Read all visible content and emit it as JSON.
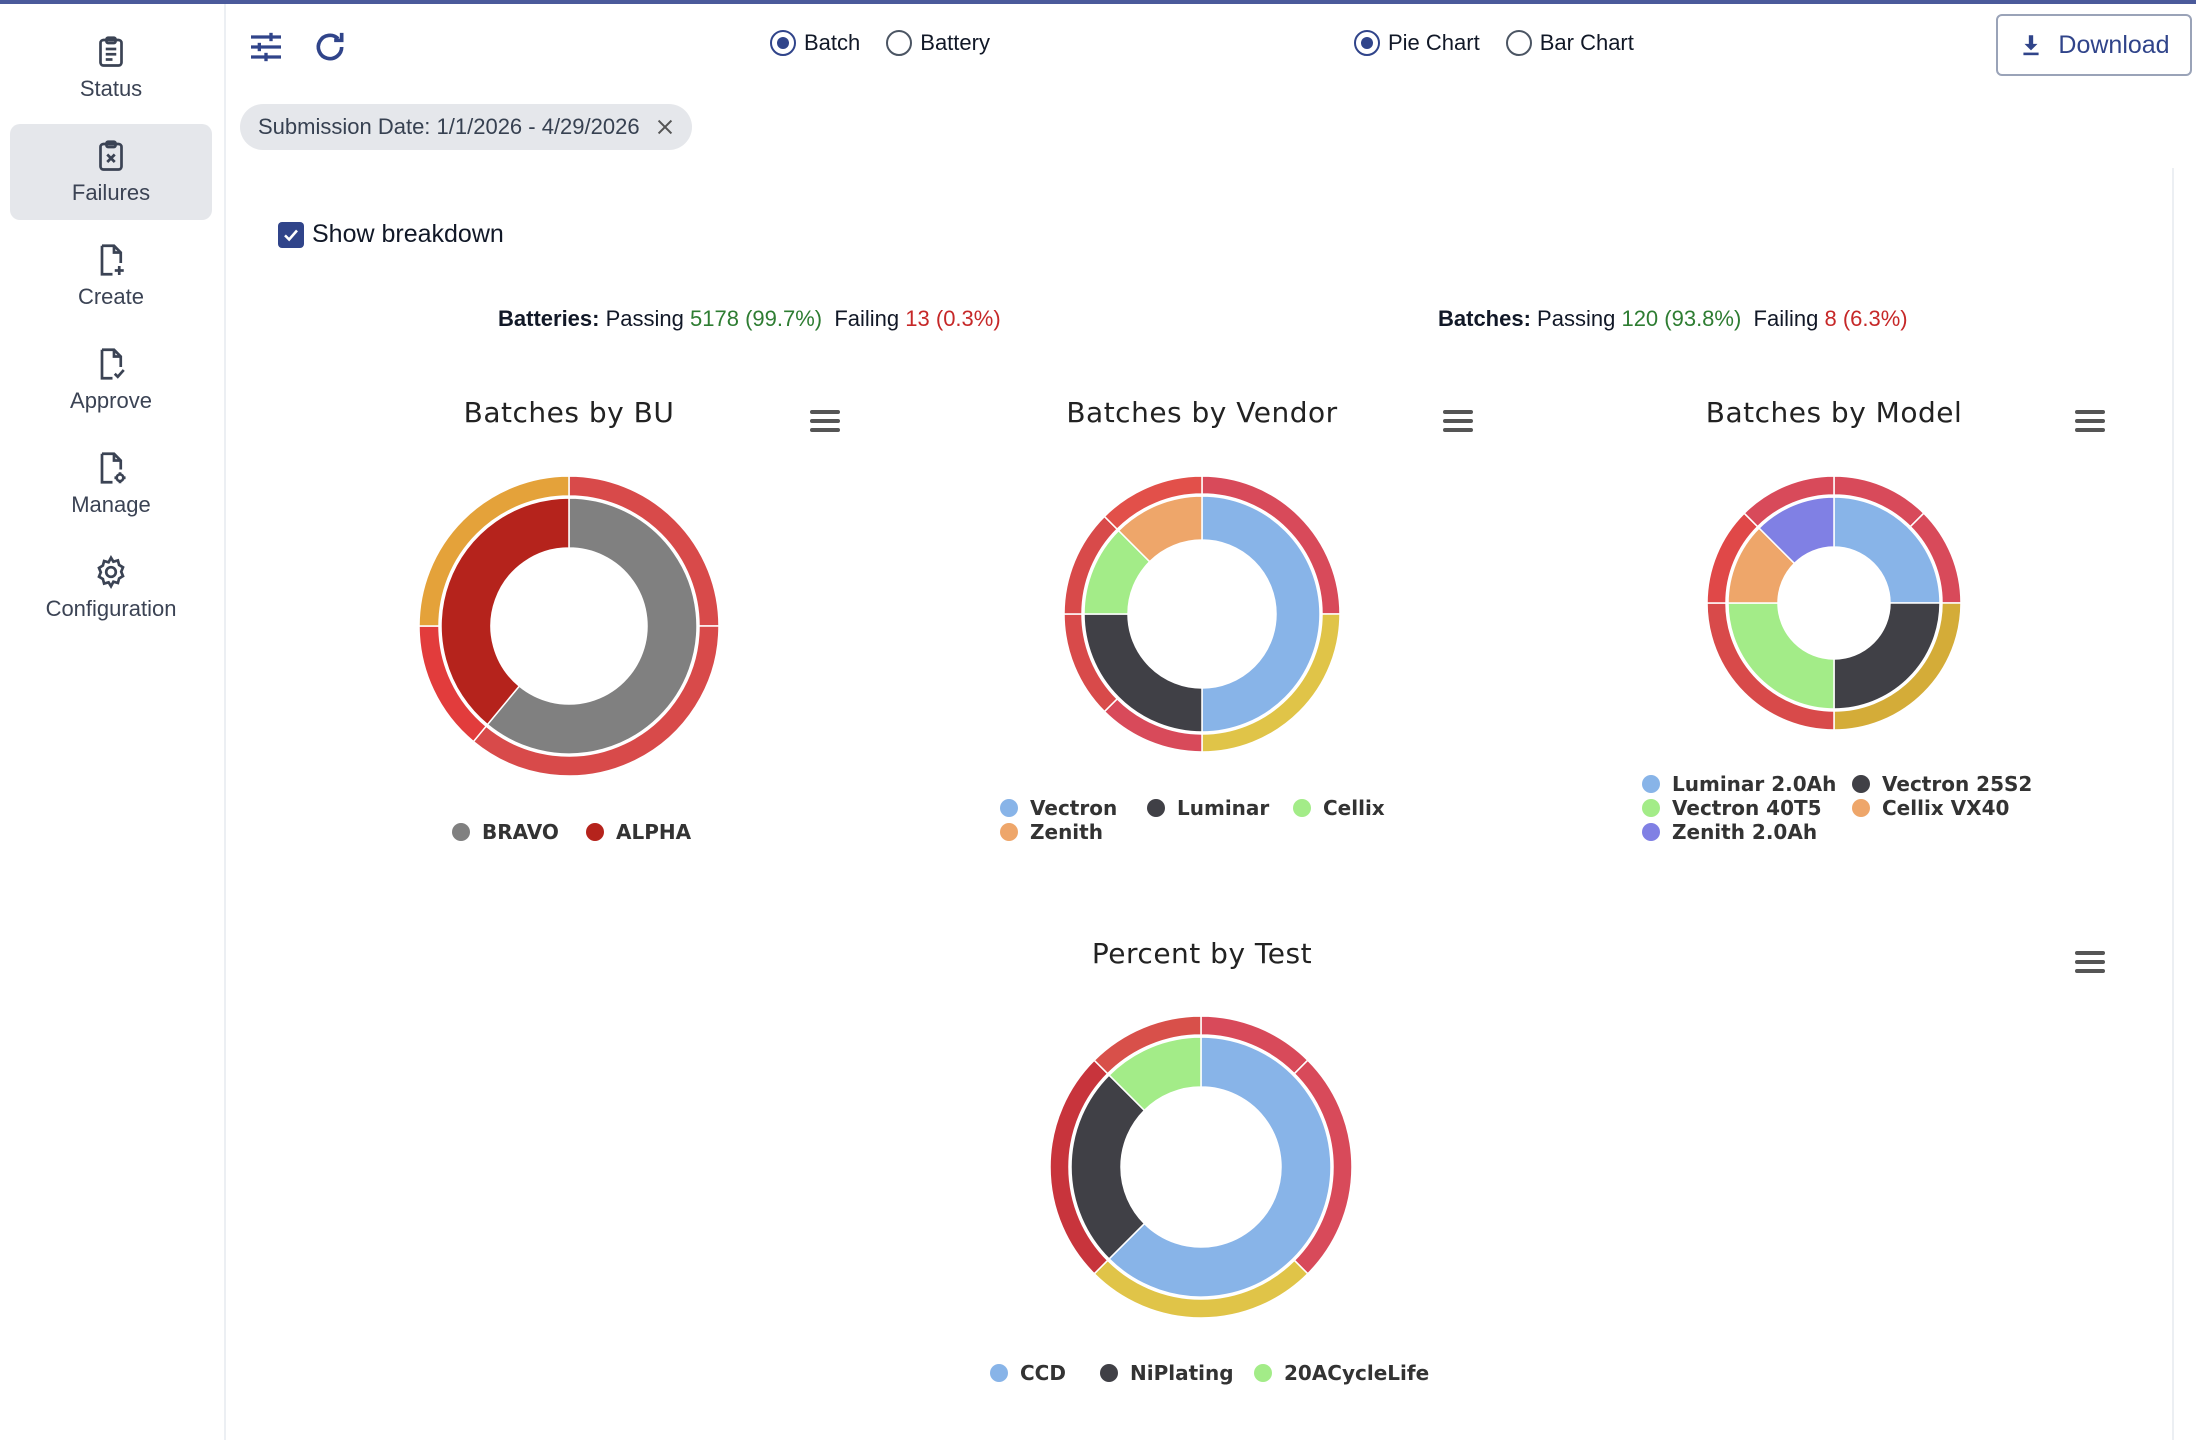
{
  "sidebar": {
    "items": [
      {
        "label": "Status",
        "icon": "clipboard-icon",
        "active": false
      },
      {
        "label": "Failures",
        "icon": "clipboard-x-icon",
        "active": true
      },
      {
        "label": "Create",
        "icon": "file-plus-icon",
        "active": false
      },
      {
        "label": "Approve",
        "icon": "file-check-icon",
        "active": false
      },
      {
        "label": "Manage",
        "icon": "file-gear-icon",
        "active": false
      },
      {
        "label": "Configuration",
        "icon": "gear-icon",
        "active": false
      }
    ]
  },
  "toolbar": {
    "filter_icon": "sliders-icon",
    "refresh_icon": "refresh-icon",
    "view_mode": {
      "options": [
        "Batch",
        "Battery"
      ],
      "selected": "Batch"
    },
    "chart_mode": {
      "options": [
        "Pie Chart",
        "Bar Chart"
      ],
      "selected": "Pie Chart"
    },
    "download_label": "Download"
  },
  "filter_chip": {
    "label": "Submission Date: 1/1/2026 - 4/29/2026"
  },
  "breakdown": {
    "label": "Show breakdown",
    "checked": true
  },
  "summary": {
    "batteries": {
      "label": "Batteries:",
      "passing_label": "Passing",
      "passing": "5178 (99.7%)",
      "failing_label": "Failing",
      "failing": "13 (0.3%)"
    },
    "batches": {
      "label": "Batches:",
      "passing_label": "Passing",
      "passing": "120 (93.8%)",
      "failing_label": "Failing",
      "failing": "8 (6.3%)"
    }
  },
  "colors": {
    "accent": "#30448a",
    "pass": "#2e7d32",
    "fail": "#c62828"
  },
  "chart_data": [
    {
      "type": "pie",
      "title": "Batches by BU",
      "legend": [
        {
          "name": "BRAVO",
          "color": "#808080"
        },
        {
          "name": "ALPHA",
          "color": "#b5231c"
        }
      ],
      "inner": [
        {
          "name": "BRAVO",
          "value": 0.61,
          "color": "#808080"
        },
        {
          "name": "ALPHA",
          "value": 0.39,
          "color": "#b5231c"
        }
      ],
      "outer": [
        {
          "value": 0.25,
          "color": "#d84a4a"
        },
        {
          "value": 0.36,
          "color": "#d84a4a"
        },
        {
          "value": 0.14,
          "color": "#e23c3c"
        },
        {
          "value": 0.25,
          "color": "#e4a23a"
        }
      ]
    },
    {
      "type": "pie",
      "title": "Batches by Vendor",
      "legend": [
        {
          "name": "Vectron",
          "color": "#88b4e8"
        },
        {
          "name": "Luminar",
          "color": "#404046"
        },
        {
          "name": "Cellix",
          "color": "#a3ec88"
        },
        {
          "name": "Zenith",
          "color": "#eea66a"
        }
      ],
      "inner": [
        {
          "name": "Vectron",
          "value": 0.5,
          "color": "#88b4e8"
        },
        {
          "name": "Luminar",
          "value": 0.25,
          "color": "#404046"
        },
        {
          "name": "Cellix",
          "value": 0.125,
          "color": "#a3ec88"
        },
        {
          "name": "Zenith",
          "value": 0.125,
          "color": "#eea66a"
        }
      ],
      "outer": [
        {
          "value": 0.25,
          "color": "#d84a5a"
        },
        {
          "value": 0.25,
          "color": "#e0c448"
        },
        {
          "value": 0.125,
          "color": "#d84a5a"
        },
        {
          "value": 0.125,
          "color": "#d84a4a"
        },
        {
          "value": 0.125,
          "color": "#d84a4a"
        },
        {
          "value": 0.125,
          "color": "#e2504a"
        }
      ]
    },
    {
      "type": "pie",
      "title": "Batches by Model",
      "legend": [
        {
          "name": "Luminar 2.0Ah",
          "color": "#88b4e8"
        },
        {
          "name": "Vectron 25S2",
          "color": "#404046"
        },
        {
          "name": "Vectron 40T5",
          "color": "#a3ec88"
        },
        {
          "name": "Cellix VX40",
          "color": "#eea66a"
        },
        {
          "name": "Zenith 2.0Ah",
          "color": "#8080e4"
        }
      ],
      "inner": [
        {
          "name": "Luminar 2.0Ah",
          "value": 0.25,
          "color": "#88b4e8"
        },
        {
          "name": "Vectron 25S2",
          "value": 0.25,
          "color": "#404046"
        },
        {
          "name": "Vectron 40T5",
          "value": 0.25,
          "color": "#a3ec88"
        },
        {
          "name": "Cellix VX40",
          "value": 0.125,
          "color": "#eea66a"
        },
        {
          "name": "Zenith 2.0Ah",
          "value": 0.125,
          "color": "#8080e4"
        }
      ],
      "outer": [
        {
          "value": 0.125,
          "color": "#d84a5a"
        },
        {
          "value": 0.125,
          "color": "#d84a5a"
        },
        {
          "value": 0.25,
          "color": "#d4ac38"
        },
        {
          "value": 0.25,
          "color": "#d84a4a"
        },
        {
          "value": 0.125,
          "color": "#e04848"
        },
        {
          "value": 0.125,
          "color": "#d84a5a"
        }
      ]
    },
    {
      "type": "pie",
      "title": "Percent by Test",
      "legend": [
        {
          "name": "CCD",
          "color": "#88b4e8"
        },
        {
          "name": "NiPlating",
          "color": "#404046"
        },
        {
          "name": "20ACycleLife",
          "color": "#a3ec88"
        }
      ],
      "inner": [
        {
          "name": "CCD",
          "value": 0.625,
          "color": "#88b4e8"
        },
        {
          "name": "NiPlating",
          "value": 0.25,
          "color": "#404046"
        },
        {
          "name": "20ACycleLife",
          "value": 0.125,
          "color": "#a3ec88"
        }
      ],
      "outer": [
        {
          "value": 0.125,
          "color": "#d84a5a"
        },
        {
          "value": 0.25,
          "color": "#d84a5a"
        },
        {
          "value": 0.25,
          "color": "#e0c448"
        },
        {
          "value": 0.25,
          "color": "#c8343c"
        },
        {
          "value": 0.125,
          "color": "#d8504a"
        }
      ]
    }
  ]
}
